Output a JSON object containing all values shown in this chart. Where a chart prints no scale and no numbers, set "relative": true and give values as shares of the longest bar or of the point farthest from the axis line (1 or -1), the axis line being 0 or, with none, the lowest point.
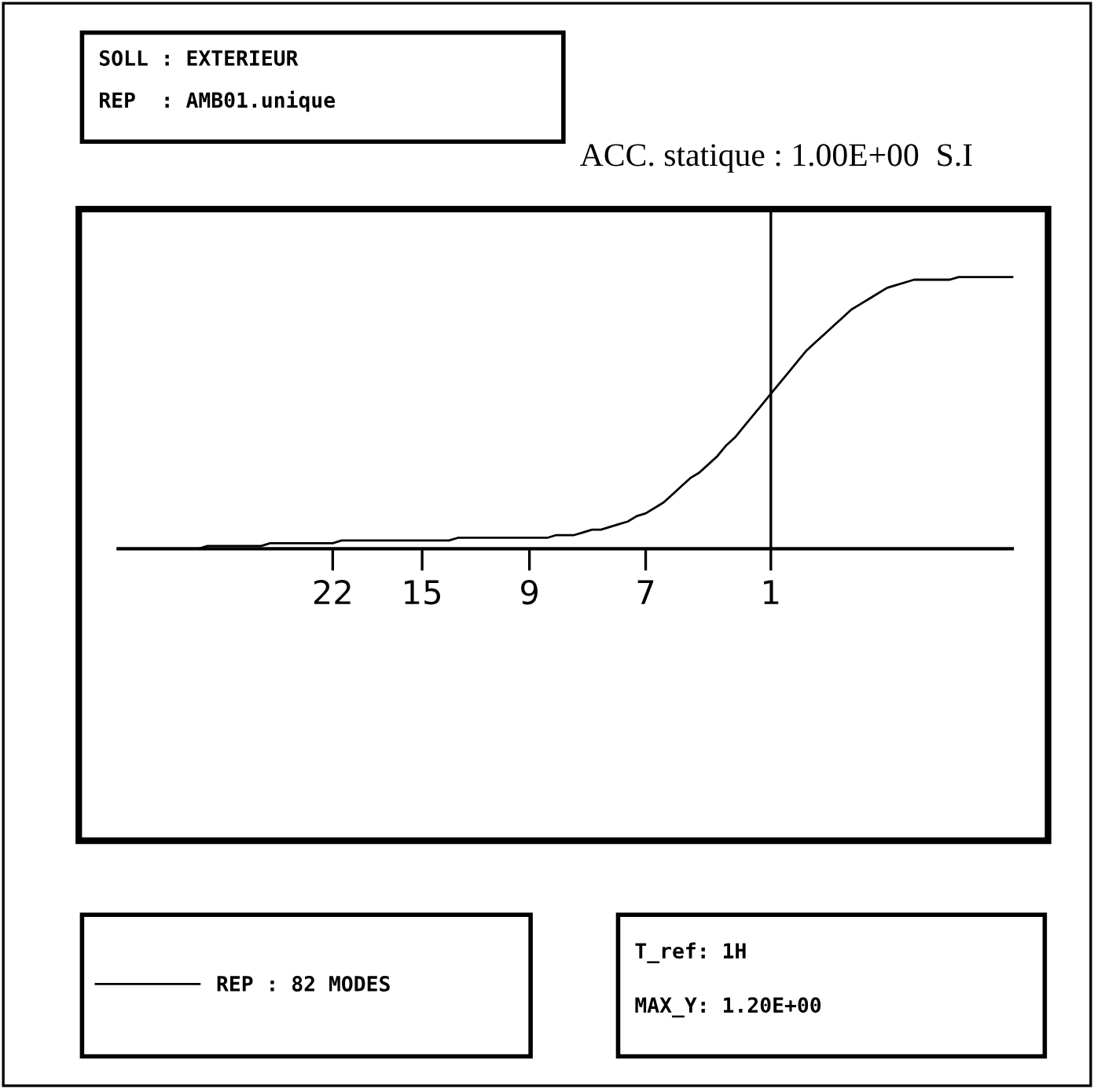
{
  "chart_data": {
    "type": "line",
    "relative": true,
    "title": "ACC. statique : 1.00E+00  S.I",
    "annotations": [
      "SOLL : EXTERIEUR",
      "REP  : AMB01.unique",
      "T_ref: 1H",
      "MAX_Y: 1.20E+00"
    ],
    "categories": [
      null,
      null,
      null,
      null,
      null,
      null,
      null,
      null,
      null,
      null,
      null,
      null,
      null,
      null,
      null,
      null,
      null,
      null,
      null,
      null,
      null,
      null,
      null,
      null,
      "22",
      null,
      null,
      null,
      null,
      null,
      null,
      null,
      null,
      null,
      "15",
      null,
      null,
      null,
      null,
      null,
      null,
      null,
      null,
      null,
      null,
      null,
      "9",
      null,
      null,
      null,
      null,
      null,
      null,
      null,
      null,
      null,
      null,
      null,
      null,
      "7",
      null,
      null,
      null,
      null,
      null,
      null,
      null,
      null,
      null,
      null,
      null,
      null,
      null,
      "1",
      null,
      null,
      null,
      null,
      null,
      null,
      null,
      null,
      null,
      null,
      null,
      null,
      null,
      null,
      null,
      null,
      null,
      null,
      null,
      null,
      null,
      null,
      null,
      null,
      null,
      null,
      null
    ],
    "ref_lines": [
      {
        "axis": "x",
        "value": "1",
        "color": "#000000"
      }
    ],
    "legend": "bottom left",
    "series": [
      {
        "name": "REP : 82 MODES",
        "color": "#000000",
        "values": [
          0,
          0,
          0,
          0,
          0,
          0,
          0,
          0,
          0,
          0,
          0.01,
          0.01,
          0.01,
          0.01,
          0.01,
          0.01,
          0.01,
          0.02,
          0.02,
          0.02,
          0.02,
          0.02,
          0.02,
          0.02,
          0.02,
          0.03,
          0.03,
          0.03,
          0.03,
          0.03,
          0.03,
          0.03,
          0.03,
          0.03,
          0.03,
          0.03,
          0.03,
          0.03,
          0.04,
          0.04,
          0.04,
          0.04,
          0.04,
          0.04,
          0.04,
          0.04,
          0.04,
          0.04,
          0.04,
          0.05,
          0.05,
          0.05,
          0.06,
          0.07,
          0.07,
          0.08,
          0.09,
          0.1,
          0.12,
          0.13,
          0.15,
          0.17,
          0.2,
          0.23,
          0.26,
          0.28,
          0.31,
          0.34,
          0.38,
          0.41,
          0.45,
          0.49,
          0.53,
          0.57,
          0.61,
          0.65,
          0.69,
          0.73,
          0.76,
          0.79,
          0.82,
          0.85,
          0.88,
          0.9,
          0.92,
          0.94,
          0.96,
          0.97,
          0.98,
          0.99,
          0.99,
          0.99,
          0.99,
          0.99,
          1,
          1,
          1,
          1,
          1,
          1,
          1
        ]
      }
    ]
  }
}
